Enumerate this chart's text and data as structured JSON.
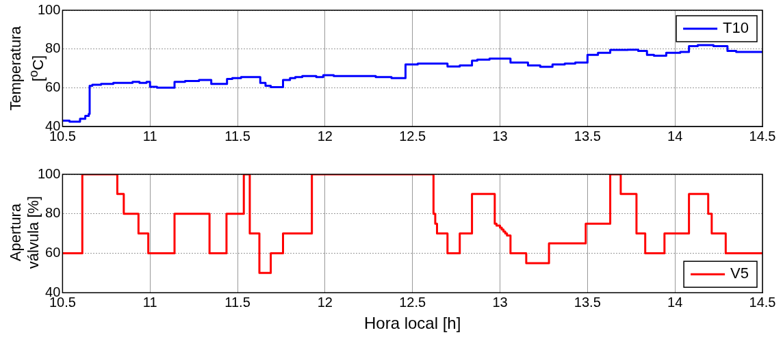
{
  "chart_data": [
    {
      "type": "step",
      "ylabel": "Temperatura [$^{o}$C]",
      "xlim": [
        10.5,
        14.5
      ],
      "xticks": [
        10.5,
        11,
        11.5,
        12,
        12.5,
        13,
        13.5,
        14,
        14.5
      ],
      "ylim": [
        40,
        100
      ],
      "yticks": [
        40,
        60,
        80,
        100
      ],
      "grid": true,
      "legend": "top right",
      "series": [
        {
          "name": "T10",
          "color": "#0000ff",
          "x": [
            10.5,
            10.54,
            10.6,
            10.63,
            10.65,
            10.655,
            10.67,
            10.72,
            10.79,
            10.9,
            10.94,
            10.98,
            11.0,
            11.04,
            11.14,
            11.2,
            11.28,
            11.35,
            11.44,
            11.47,
            11.52,
            11.63,
            11.66,
            11.69,
            11.76,
            11.8,
            11.83,
            11.87,
            11.95,
            11.99,
            12.05,
            12.29,
            12.38,
            12.46,
            12.53,
            12.7,
            12.77,
            12.84,
            12.87,
            12.94,
            13.06,
            13.16,
            13.23,
            13.3,
            13.37,
            13.43,
            13.5,
            13.56,
            13.63,
            13.73,
            13.79,
            13.84,
            13.88,
            13.95,
            14.03,
            14.08,
            14.13,
            14.22,
            14.3,
            14.35,
            14.5
          ],
          "values": [
            43,
            42.5,
            44,
            45.5,
            46.5,
            61,
            61.5,
            62,
            62.5,
            63,
            62.5,
            63,
            60.5,
            60,
            63,
            63.5,
            64,
            62,
            64.5,
            65,
            65.5,
            62.5,
            61,
            60.3,
            64,
            65,
            65.5,
            66,
            65.5,
            66.5,
            66,
            65.5,
            65,
            72,
            72.5,
            71,
            71.5,
            74,
            74.5,
            75,
            73,
            71.5,
            70.8,
            72,
            72.5,
            73,
            77,
            78,
            79.5,
            79.6,
            79,
            77,
            76.5,
            78,
            78.5,
            81.5,
            82,
            81.5,
            79,
            78.5,
            78.5
          ]
        }
      ]
    },
    {
      "type": "step",
      "xlabel": "Hora local [h]",
      "ylabel": "Apertura válvula [%]",
      "xlim": [
        10.5,
        14.5
      ],
      "xticks": [
        10.5,
        11,
        11.5,
        12,
        12.5,
        13,
        13.5,
        14,
        14.5
      ],
      "ylim": [
        40,
        100
      ],
      "yticks": [
        40,
        60,
        80,
        100
      ],
      "grid": true,
      "legend": "bottom right",
      "series": [
        {
          "name": "V5",
          "color": "#ff0000",
          "x": [
            10.5,
            10.613,
            10.813,
            10.85,
            10.934,
            10.99,
            11.14,
            11.34,
            11.437,
            11.536,
            11.57,
            11.625,
            11.69,
            11.76,
            11.925,
            12.62,
            12.63,
            12.64,
            12.7,
            12.77,
            12.84,
            12.97,
            12.98,
            13.0,
            13.01,
            13.02,
            13.03,
            13.04,
            13.06,
            13.15,
            13.28,
            13.49,
            13.63,
            13.69,
            13.78,
            13.83,
            13.94,
            14.08,
            14.19,
            14.21,
            14.29,
            14.5
          ],
          "values": [
            60,
            100,
            90,
            80,
            70,
            60,
            80,
            60,
            80,
            100,
            70,
            50,
            60,
            70,
            100,
            80,
            75,
            70,
            60,
            70,
            90,
            75,
            74,
            73,
            72,
            71,
            70,
            69,
            60,
            55,
            65,
            75,
            100,
            90,
            70,
            60,
            70,
            90,
            80,
            70,
            60,
            60
          ]
        }
      ]
    }
  ]
}
